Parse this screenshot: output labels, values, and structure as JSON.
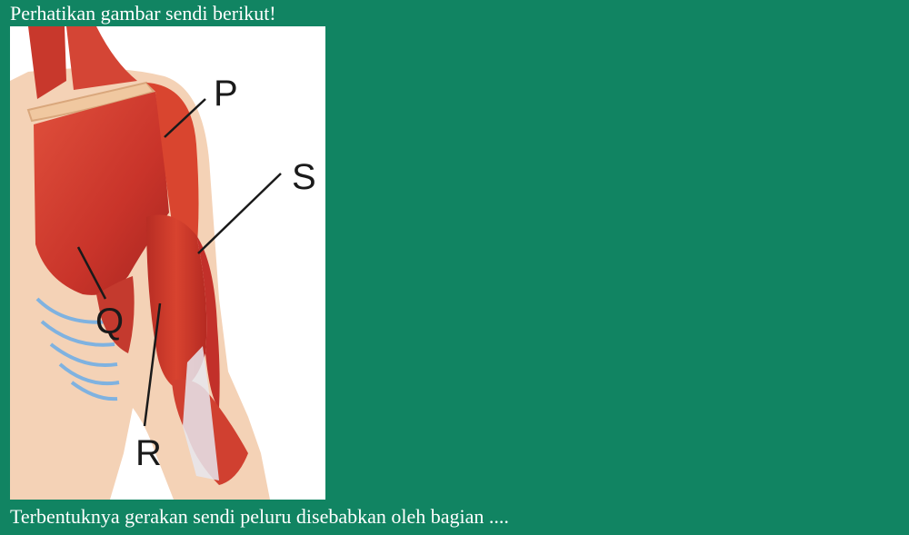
{
  "question": {
    "intro": "Perhatikan gambar sendi berikut!",
    "stem": "Terbentuknya gerakan sendi peluru disebabkan oleh bagian ...."
  },
  "figure": {
    "labels": {
      "p": "P",
      "q": "Q",
      "r": "R",
      "s": "S"
    },
    "colors": {
      "background": "#118462",
      "muscle": "#d23a2c",
      "skin": "#f2c9a8",
      "rib": "#7fb2e0"
    }
  }
}
